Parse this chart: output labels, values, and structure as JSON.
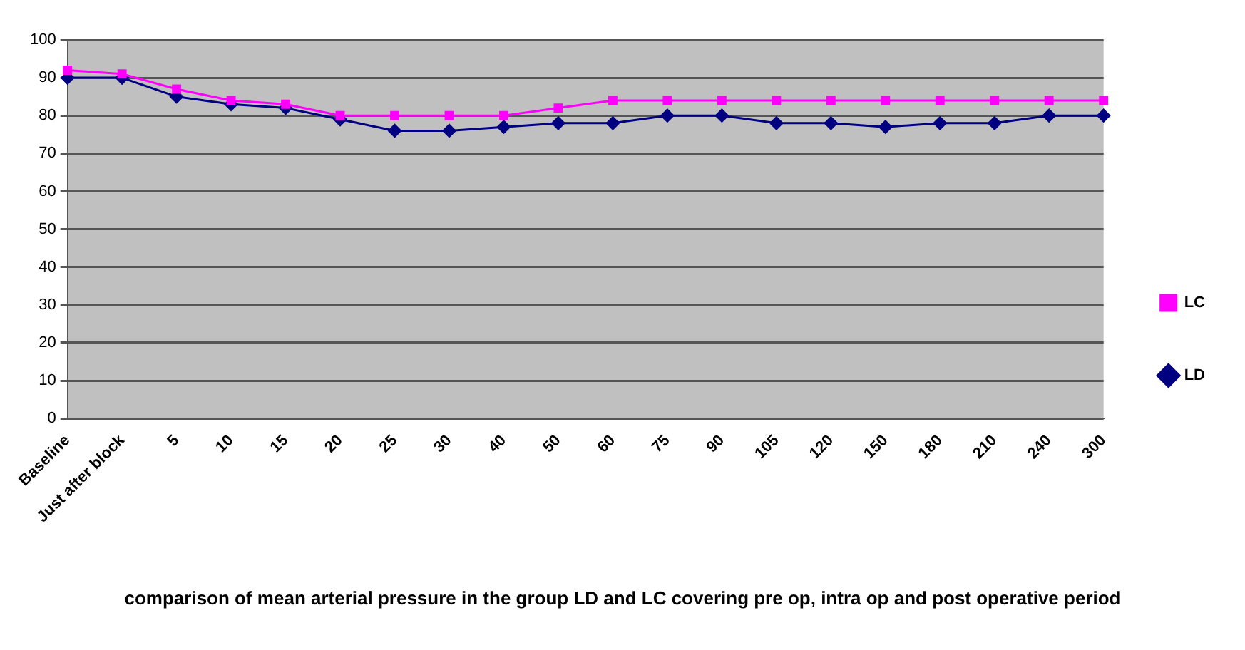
{
  "chart_data": {
    "type": "line",
    "title": "comparison of mean arterial pressure in the group LD and LC covering pre op, intra op and post operative period",
    "categories": [
      "Baseline",
      "Just after block",
      "5",
      "10",
      "15",
      "20",
      "25",
      "30",
      "40",
      "50",
      "60",
      "75",
      "90",
      "105",
      "120",
      "150",
      "180",
      "210",
      "240",
      "300"
    ],
    "series": [
      {
        "name": "LD",
        "color": "#000080",
        "marker": "diamond",
        "values": [
          90,
          90,
          85,
          83,
          82,
          79,
          76,
          76,
          77,
          78,
          78,
          80,
          80,
          78,
          78,
          77,
          78,
          78,
          80,
          80
        ]
      },
      {
        "name": "LC",
        "color": "#ff00ff",
        "marker": "square",
        "values": [
          92,
          91,
          87,
          84,
          83,
          80,
          80,
          80,
          80,
          82,
          84,
          84,
          84,
          84,
          84,
          84,
          84,
          84,
          84,
          84
        ]
      }
    ],
    "ylim": [
      0,
      100
    ],
    "yticks": [
      0,
      10,
      20,
      30,
      40,
      50,
      60,
      70,
      80,
      90,
      100
    ],
    "grid": "y",
    "legend": "right"
  }
}
